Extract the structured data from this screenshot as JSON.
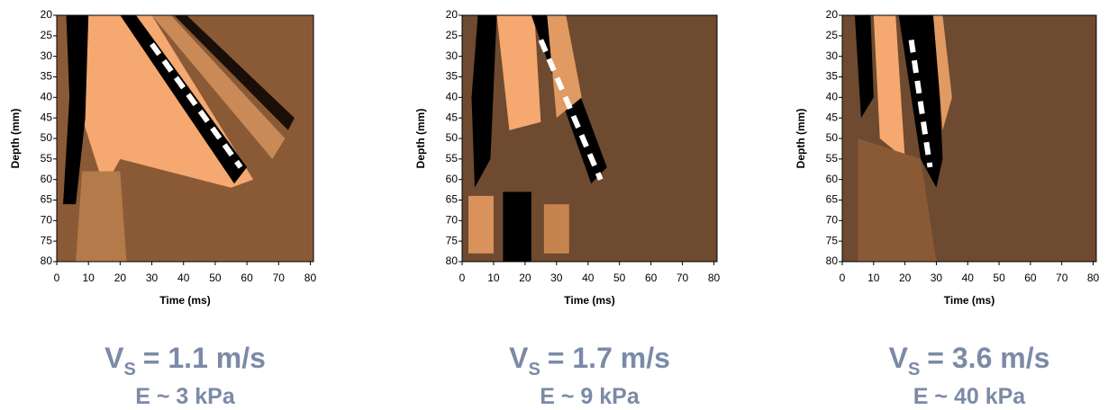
{
  "chart_data": [
    {
      "type": "image",
      "xlabel": "Time (ms)",
      "ylabel": "Depth (mm)",
      "xlim": [
        0,
        81
      ],
      "ylim": [
        80,
        20
      ],
      "xticks": [
        0,
        10,
        20,
        30,
        40,
        50,
        60,
        70,
        80
      ],
      "yticks": [
        20,
        25,
        30,
        35,
        40,
        45,
        50,
        55,
        60,
        65,
        70,
        75,
        80
      ],
      "velocity_symbol": "V",
      "velocity_subscript": "S",
      "velocity_text": "= 1.1 m/s",
      "modulus_text": "E ~ 3 kPa"
    },
    {
      "type": "image",
      "xlabel": "Time (ms)",
      "ylabel": "Depth (mm)",
      "xlim": [
        0,
        81
      ],
      "ylim": [
        80,
        20
      ],
      "xticks": [
        0,
        10,
        20,
        30,
        40,
        50,
        60,
        70,
        80
      ],
      "yticks": [
        20,
        25,
        30,
        35,
        40,
        45,
        50,
        55,
        60,
        65,
        70,
        75,
        80
      ],
      "velocity_symbol": "V",
      "velocity_subscript": "S",
      "velocity_text": "= 1.7 m/s",
      "modulus_text": "E ~ 9 kPa"
    },
    {
      "type": "image",
      "xlabel": "Time (ms)",
      "ylabel": "Depth (mm)",
      "xlim": [
        0,
        81
      ],
      "ylim": [
        80,
        20
      ],
      "xticks": [
        0,
        10,
        20,
        30,
        40,
        50,
        60,
        70,
        80
      ],
      "yticks": [
        20,
        25,
        30,
        35,
        40,
        45,
        50,
        55,
        60,
        65,
        70,
        75,
        80
      ],
      "velocity_symbol": "V",
      "velocity_subscript": "S",
      "velocity_text": "= 3.6 m/s",
      "modulus_text": "E ~ 40 kPa"
    }
  ]
}
